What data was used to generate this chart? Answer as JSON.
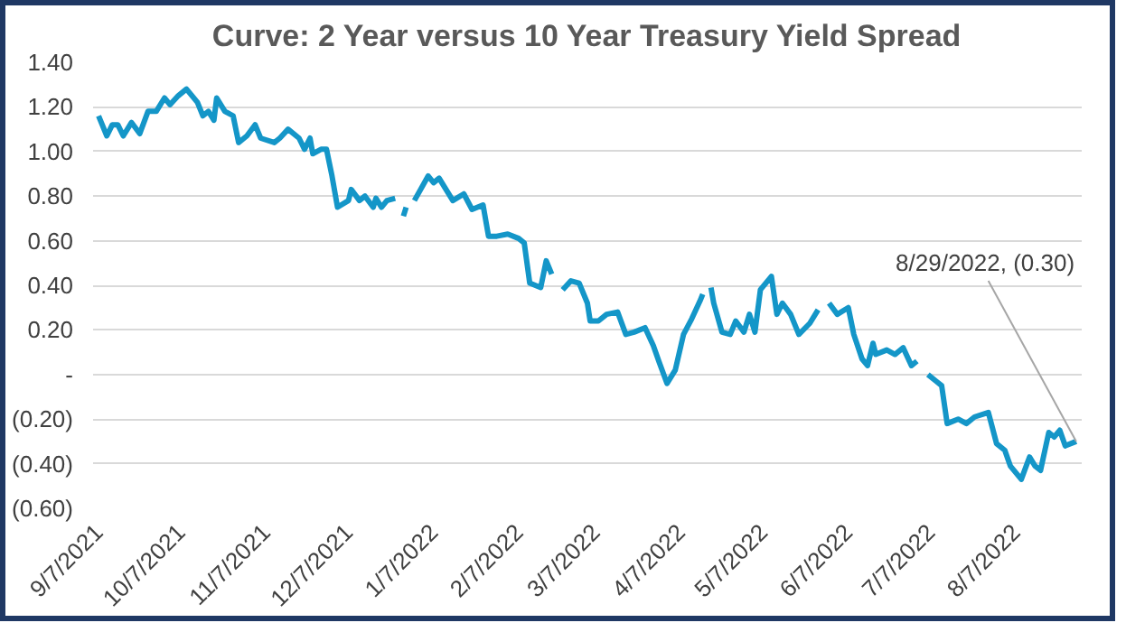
{
  "chart_data": {
    "type": "line",
    "title": "Curve: 2 Year versus 10 Year Treasury Yield Spread",
    "x": [
      "2021-09-07",
      "2021-09-10",
      "2021-09-12",
      "2021-09-14",
      "2021-09-16",
      "2021-09-19",
      "2021-09-22",
      "2021-09-25",
      "2021-09-28",
      "2021-10-01",
      "2021-10-03",
      "2021-10-06",
      "2021-10-09",
      "2021-10-13",
      "2021-10-15",
      "2021-10-17",
      "2021-10-19",
      "2021-10-20",
      "2021-10-23",
      "2021-10-26",
      "2021-10-28",
      "2021-10-31",
      "2021-11-03",
      "2021-11-05",
      "2021-11-10",
      "2021-11-12",
      "2021-11-15",
      "2021-11-19",
      "2021-11-21",
      "2021-11-23",
      "2021-11-24",
      "2021-11-27",
      "2021-11-29",
      "2021-12-01",
      "2021-12-03",
      "2021-12-07",
      "2021-12-08",
      "2021-12-11",
      "2021-12-13",
      "2021-12-16",
      "2021-12-17",
      "2021-12-19",
      "2021-12-21",
      "2021-12-24",
      "2021-12-25",
      "2021-12-27",
      "2021-12-28",
      "2021-12-29",
      "2021-12-31",
      "2022-01-05",
      "2022-01-07",
      "2022-01-09",
      "2022-01-14",
      "2022-01-18",
      "2022-01-21",
      "2022-01-25",
      "2022-01-27",
      "2022-01-30",
      "2022-02-03",
      "2022-02-07",
      "2022-02-09",
      "2022-02-11",
      "2022-02-15",
      "2022-02-17",
      "2022-02-19",
      "2022-02-21",
      "2022-02-23",
      "2022-02-26",
      "2022-03-01",
      "2022-03-04",
      "2022-03-05",
      "2022-03-08",
      "2022-03-11",
      "2022-03-15",
      "2022-03-18",
      "2022-03-21",
      "2022-03-25",
      "2022-03-28",
      "2022-03-30",
      "2022-04-02",
      "2022-04-05",
      "2022-04-08",
      "2022-04-11",
      "2022-04-14",
      "2022-04-15",
      "2022-04-16",
      "2022-04-18",
      "2022-04-19",
      "2022-04-22",
      "2022-04-25",
      "2022-04-27",
      "2022-04-30",
      "2022-05-02",
      "2022-05-04",
      "2022-05-06",
      "2022-05-10",
      "2022-05-12",
      "2022-05-14",
      "2022-05-17",
      "2022-05-20",
      "2022-05-24",
      "2022-05-27",
      "2022-05-29",
      "2022-05-31",
      "2022-06-03",
      "2022-06-07",
      "2022-06-09",
      "2022-06-12",
      "2022-06-14",
      "2022-06-16",
      "2022-06-17",
      "2022-06-21",
      "2022-06-24",
      "2022-06-27",
      "2022-06-30",
      "2022-07-02",
      "2022-07-04",
      "2022-07-06",
      "2022-07-09",
      "2022-07-11",
      "2022-07-13",
      "2022-07-17",
      "2022-07-20",
      "2022-07-23",
      "2022-07-28",
      "2022-07-31",
      "2022-08-03",
      "2022-08-05",
      "2022-08-09",
      "2022-08-12",
      "2022-08-14",
      "2022-08-16",
      "2022-08-19",
      "2022-08-21",
      "2022-08-23",
      "2022-08-25",
      "2022-08-29"
    ],
    "series": [
      {
        "color": "#1496c8",
        "values": [
          1.16,
          1.07,
          1.12,
          1.12,
          1.07,
          1.13,
          1.08,
          1.18,
          1.18,
          1.24,
          1.21,
          1.25,
          1.28,
          1.22,
          1.16,
          1.18,
          1.14,
          1.24,
          1.18,
          1.16,
          1.04,
          1.07,
          1.12,
          1.06,
          1.04,
          1.06,
          1.1,
          1.06,
          1.01,
          1.06,
          0.99,
          1.01,
          1.01,
          0.89,
          0.75,
          0.78,
          0.83,
          0.78,
          0.8,
          0.75,
          0.79,
          0.75,
          0.78,
          0.79,
          null,
          0.71,
          0.75,
          null,
          0.78,
          0.89,
          0.86,
          0.88,
          0.78,
          0.81,
          0.74,
          0.76,
          0.62,
          0.62,
          0.63,
          0.61,
          0.59,
          0.41,
          0.39,
          0.51,
          0.45,
          null,
          0.38,
          0.42,
          0.41,
          0.32,
          0.24,
          0.24,
          0.27,
          0.28,
          0.18,
          0.19,
          0.21,
          0.13,
          0.06,
          -0.04,
          0.02,
          0.18,
          0.25,
          0.33,
          0.36,
          null,
          0.39,
          0.32,
          0.19,
          0.18,
          0.24,
          0.19,
          0.27,
          0.19,
          0.38,
          0.44,
          0.27,
          0.32,
          0.27,
          0.18,
          0.23,
          0.29,
          null,
          0.32,
          0.27,
          0.3,
          0.18,
          0.07,
          0.04,
          0.14,
          0.09,
          0.11,
          0.09,
          0.12,
          0.04,
          0.06,
          null,
          0.0,
          -0.03,
          -0.05,
          -0.22,
          -0.2,
          -0.22,
          -0.19,
          -0.17,
          -0.31,
          -0.34,
          -0.41,
          -0.47,
          -0.37,
          -0.41,
          -0.43,
          -0.26,
          -0.28,
          -0.25,
          -0.32,
          -0.3
        ]
      }
    ],
    "xlim": [
      "2021-09-05",
      "2022-08-31"
    ],
    "xticks": [
      {
        "value": "2021-09-07",
        "label": "9/7/2021"
      },
      {
        "value": "2021-10-07",
        "label": "10/7/2021"
      },
      {
        "value": "2021-11-07",
        "label": "11/7/2021"
      },
      {
        "value": "2021-12-07",
        "label": "12/7/2021"
      },
      {
        "value": "2022-01-07",
        "label": "1/7/2022"
      },
      {
        "value": "2022-02-07",
        "label": "2/7/2022"
      },
      {
        "value": "2022-03-07",
        "label": "3/7/2022"
      },
      {
        "value": "2022-04-07",
        "label": "4/7/2022"
      },
      {
        "value": "2022-05-07",
        "label": "5/7/2022"
      },
      {
        "value": "2022-06-07",
        "label": "6/7/2022"
      },
      {
        "value": "2022-07-07",
        "label": "7/7/2022"
      },
      {
        "value": "2022-08-07",
        "label": "8/7/2022"
      }
    ],
    "ylim": [
      -0.6,
      1.4
    ],
    "yticks": [
      {
        "value": -0.6,
        "label": "(0.60)"
      },
      {
        "value": -0.4,
        "label": "(0.40)"
      },
      {
        "value": -0.2,
        "label": "(0.20)"
      },
      {
        "value": 0,
        "label": "-"
      },
      {
        "value": 0.2,
        "label": "0.20"
      },
      {
        "value": 0.4,
        "label": "0.40"
      },
      {
        "value": 0.6,
        "label": "0.60"
      },
      {
        "value": 0.8,
        "label": "0.80"
      },
      {
        "value": 1.0,
        "label": "1.00"
      },
      {
        "value": 1.2,
        "label": "1.20"
      },
      {
        "value": 1.4,
        "label": "1.40"
      }
    ],
    "grid": "y",
    "annotations": [
      {
        "text": "8/29/2022,  (0.30)",
        "x": "2022-08-29",
        "y": -0.3
      }
    ]
  }
}
